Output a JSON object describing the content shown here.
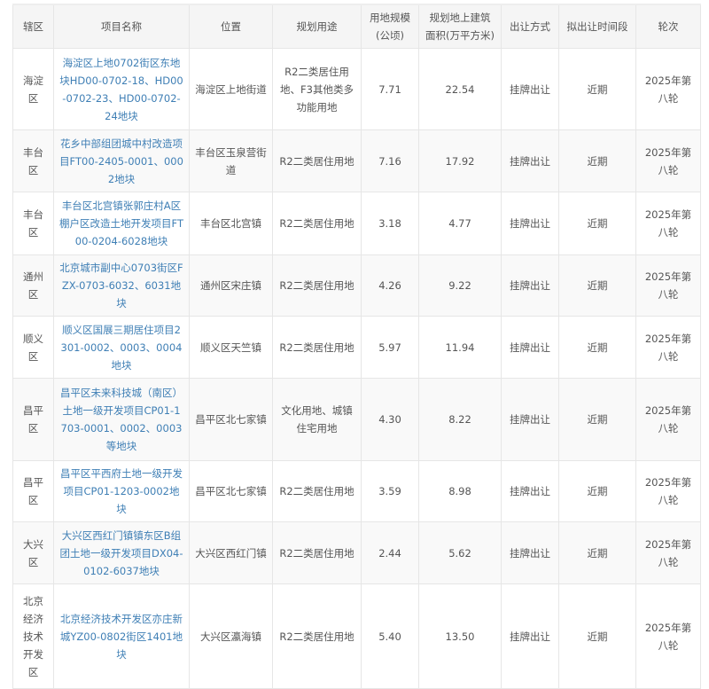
{
  "link_color": "#3f7fb5",
  "headers": [
    "辖区",
    "项目名称",
    "位置",
    "规划用途",
    "用地规模(公顷)",
    "规划地上建筑面积(万平方米)",
    "出让方式",
    "拟出让时间段",
    "轮次"
  ],
  "rows": [
    {
      "district": "海淀区",
      "name": "海淀区上地0702街区东地块HD00-0702-18、HD00-0702-23、HD00-0702-24地块",
      "location": "海淀区上地街道",
      "use": "R2二类居住用地、F3其他类多功能用地",
      "area": "7.71",
      "gfa": "22.54",
      "method": "挂牌出让",
      "period": "近期",
      "round": "2025年第八轮"
    },
    {
      "district": "丰台区",
      "name": "花乡中部组团城中村改造项目FT00-2405-0001、0002地块",
      "location": "丰台区玉泉营街道",
      "use": "R2二类居住用地",
      "area": "7.16",
      "gfa": "17.92",
      "method": "挂牌出让",
      "period": "近期",
      "round": "2025年第八轮"
    },
    {
      "district": "丰台区",
      "name": "丰台区北宫镇张郭庄村A区棚户区改造土地开发项目FT00-0204-6028地块",
      "location": "丰台区北宫镇",
      "use": "R2二类居住用地",
      "area": "3.18",
      "gfa": "4.77",
      "method": "挂牌出让",
      "period": "近期",
      "round": "2025年第八轮"
    },
    {
      "district": "通州区",
      "name": "北京城市副中心0703街区FZX-0703-6032、6031地块",
      "location": "通州区宋庄镇",
      "use": "R2二类居住用地",
      "area": "4.26",
      "gfa": "9.22",
      "method": "挂牌出让",
      "period": "近期",
      "round": "2025年第八轮"
    },
    {
      "district": "顺义区",
      "name": "顺义区国展三期居住项目2301-0002、0003、0004地块",
      "location": "顺义区天竺镇",
      "use": "R2二类居住用地",
      "area": "5.97",
      "gfa": "11.94",
      "method": "挂牌出让",
      "period": "近期",
      "round": "2025年第八轮"
    },
    {
      "district": "昌平区",
      "name": "昌平区未来科技城（南区）土地一级开发项目CP01-1703-0001、0002、0003等地块",
      "location": "昌平区北七家镇",
      "use": "文化用地、城镇住宅用地",
      "area": "4.30",
      "gfa": "8.22",
      "method": "挂牌出让",
      "period": "近期",
      "round": "2025年第八轮"
    },
    {
      "district": "昌平区",
      "name": "昌平区平西府土地一级开发项目CP01-1203-0002地块",
      "location": "昌平区北七家镇",
      "use": "R2二类居住用地",
      "area": "3.59",
      "gfa": "8.98",
      "method": "挂牌出让",
      "period": "近期",
      "round": "2025年第八轮"
    },
    {
      "district": "大兴区",
      "name": "大兴区西红门镇镇东区B组团土地一级开发项目DX04-0102-6037地块",
      "location": "大兴区西红门镇",
      "use": "R2二类居住用地",
      "area": "2.44",
      "gfa": "5.62",
      "method": "挂牌出让",
      "period": "近期",
      "round": "2025年第八轮"
    },
    {
      "district": "北京经济技术开发区",
      "name": "北京经济技术开发区亦庄新城YZ00-0802街区1401地块",
      "location": "大兴区瀛海镇",
      "use": "R2二类居住用地",
      "area": "5.40",
      "gfa": "13.50",
      "method": "挂牌出让",
      "period": "近期",
      "round": "2025年第八轮"
    }
  ]
}
